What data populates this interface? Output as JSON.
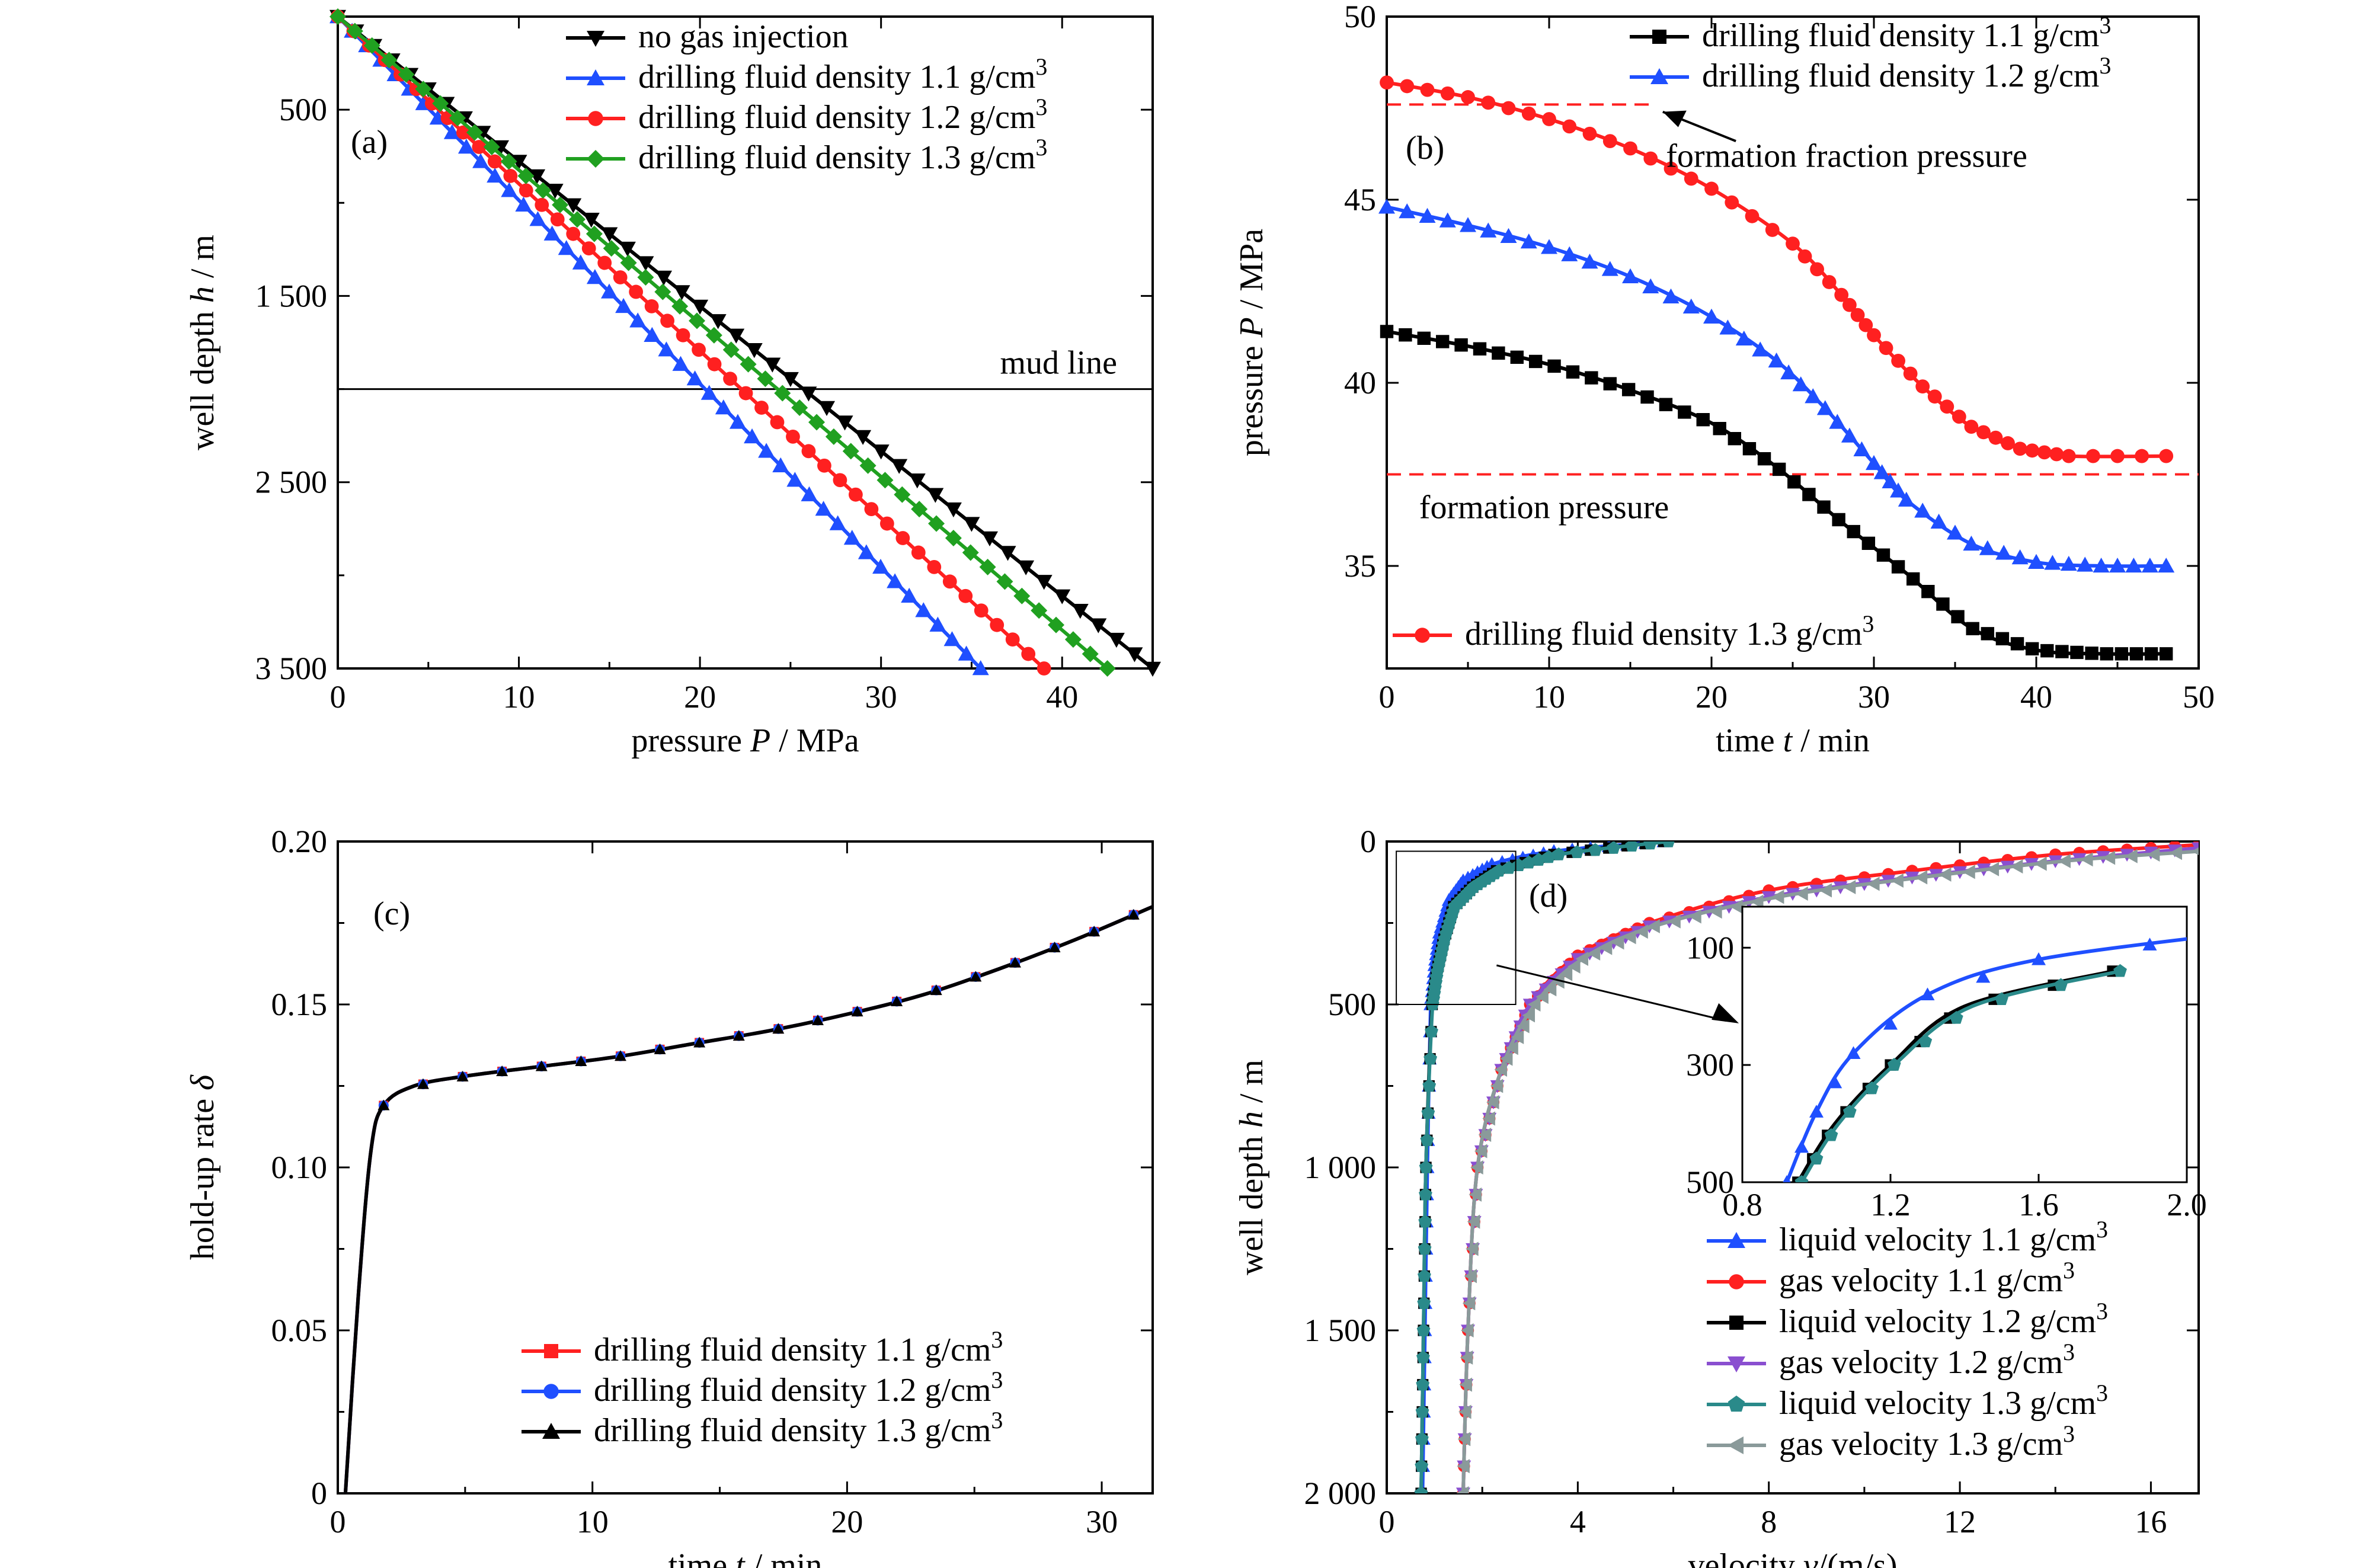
{
  "chart_data": [
    {
      "id": "a",
      "type": "line",
      "panel_label": "(a)",
      "xlabel_pre": "pressure ",
      "xlabel_var": "P",
      "xlabel_post": " / MPa",
      "ylabel_pre": "well depth ",
      "ylabel_var": "h",
      "ylabel_post": " / m",
      "xlim": [
        0,
        45
      ],
      "ylim": [
        0,
        3500
      ],
      "y_inverted": true,
      "xticks": [
        0,
        10,
        20,
        30,
        40
      ],
      "xtick_labels": [
        "0",
        "10",
        "20",
        "30",
        "40"
      ],
      "yticks": [
        500,
        1500,
        2500,
        3500
      ],
      "ytick_labels": [
        "500",
        "1 500",
        "2 500",
        "3 500"
      ],
      "legend_position": "top-right",
      "annotations": [
        {
          "text": "mud line",
          "hline_y": 2000
        }
      ],
      "series": [
        {
          "name": "no gas injection",
          "color": "#000000",
          "marker": "triangle-down",
          "points": [
            [
              0,
              0
            ],
            [
              45,
              3500
            ]
          ]
        },
        {
          "name": "drilling fluid density 1.1 g/cm³",
          "color": "#1f4fff",
          "marker": "triangle-up",
          "points": [
            [
              0,
              0
            ],
            [
              35.5,
              3500
            ]
          ]
        },
        {
          "name": "drilling fluid density 1.2 g/cm³",
          "color": "#ff2020",
          "marker": "circle",
          "points": [
            [
              0,
              0
            ],
            [
              39,
              3500
            ]
          ]
        },
        {
          "name": "drilling fluid density 1.3 g/cm³",
          "color": "#20a020",
          "marker": "diamond",
          "points": [
            [
              0,
              0
            ],
            [
              42.5,
              3500
            ]
          ]
        }
      ]
    },
    {
      "id": "b",
      "type": "line",
      "panel_label": "(b)",
      "xlabel_pre": "time  ",
      "xlabel_var": "t",
      "xlabel_post": " / min",
      "ylabel_pre": "pressure ",
      "ylabel_var": "P",
      "ylabel_post": " / MPa",
      "xlim": [
        0,
        50
      ],
      "ylim": [
        32.2,
        50
      ],
      "xticks": [
        0,
        10,
        20,
        30,
        40,
        50
      ],
      "xtick_labels": [
        "0",
        "10",
        "20",
        "30",
        "40",
        "50"
      ],
      "yticks": [
        35,
        40,
        45,
        50
      ],
      "ytick_labels": [
        "35",
        "40",
        "45",
        "50"
      ],
      "annotations": [
        {
          "text": "formation fraction pressure",
          "hline_y": 47.6
        },
        {
          "text": "formation pressure",
          "hline_y": 37.5
        }
      ],
      "series": [
        {
          "name": "drilling fluid density 1.1 g/cm³",
          "color": "#000000",
          "marker": "square",
          "points": [
            [
              0,
              41.4
            ],
            [
              5,
              41.0
            ],
            [
              10,
              40.5
            ],
            [
              15,
              39.8
            ],
            [
              20,
              38.9
            ],
            [
              24,
              37.7
            ],
            [
              28,
              36.2
            ],
            [
              32,
              34.8
            ],
            [
              36,
              33.3
            ],
            [
              40,
              32.7
            ],
            [
              44,
              32.6
            ],
            [
              48,
              32.6
            ]
          ]
        },
        {
          "name": "drilling fluid density 1.2 g/cm³",
          "color": "#1f4fff",
          "marker": "triangle-up",
          "points": [
            [
              0,
              44.8
            ],
            [
              5,
              44.3
            ],
            [
              10,
              43.7
            ],
            [
              15,
              42.9
            ],
            [
              20,
              41.8
            ],
            [
              24,
              40.6
            ],
            [
              27,
              39.3
            ],
            [
              30,
              37.8
            ],
            [
              32,
              36.8
            ],
            [
              36,
              35.6
            ],
            [
              40,
              35.1
            ],
            [
              44,
              35.0
            ],
            [
              48,
              35.0
            ]
          ]
        },
        {
          "name": "drilling fluid density 1.3 g/cm³",
          "color": "#ff2020",
          "marker": "circle",
          "points": [
            [
              0,
              48.2
            ],
            [
              5,
              47.8
            ],
            [
              10,
              47.2
            ],
            [
              15,
              46.4
            ],
            [
              20,
              45.3
            ],
            [
              25,
              43.8
            ],
            [
              28,
              42.4
            ],
            [
              30,
              41.3
            ],
            [
              33,
              39.9
            ],
            [
              36,
              38.8
            ],
            [
              39,
              38.2
            ],
            [
              42,
              38.0
            ],
            [
              48,
              38.0
            ]
          ]
        }
      ]
    },
    {
      "id": "c",
      "type": "line",
      "panel_label": "(c)",
      "xlabel_pre": "time  ",
      "xlabel_var": "t",
      "xlabel_post": " / min",
      "ylabel_pre": "hold-up rate ",
      "ylabel_var": "δ",
      "ylabel_post": "",
      "xlim": [
        0,
        32
      ],
      "ylim": [
        0,
        0.2
      ],
      "xticks": [
        0,
        10,
        20,
        30
      ],
      "xtick_labels": [
        "0",
        "10",
        "20",
        "30"
      ],
      "yticks": [
        0,
        0.05,
        0.1,
        0.15,
        0.2
      ],
      "ytick_labels": [
        "0",
        "0.05",
        "0.10",
        "0.15",
        "0.20"
      ],
      "legend_position": "bottom-right",
      "series": [
        {
          "name": "drilling fluid density 1.1 g/cm³",
          "color": "#ff2020",
          "marker": "square",
          "points": [
            [
              0.3,
              0
            ],
            [
              0.8,
              0.06
            ],
            [
              1.3,
              0.105
            ],
            [
              1.8,
              0.119
            ],
            [
              3,
              0.125
            ],
            [
              5,
              0.128
            ],
            [
              8,
              0.131
            ],
            [
              11,
              0.134
            ],
            [
              14,
              0.138
            ],
            [
              17,
              0.142
            ],
            [
              20,
              0.147
            ],
            [
              23,
              0.153
            ],
            [
              26,
              0.161
            ],
            [
              29,
              0.17
            ],
            [
              32,
              0.18
            ]
          ]
        },
        {
          "name": "drilling fluid density 1.2 g/cm³",
          "color": "#1f4fff",
          "marker": "circle",
          "points": [
            [
              0.3,
              0
            ],
            [
              0.8,
              0.06
            ],
            [
              1.3,
              0.105
            ],
            [
              1.8,
              0.119
            ],
            [
              3,
              0.125
            ],
            [
              5,
              0.128
            ],
            [
              8,
              0.131
            ],
            [
              11,
              0.134
            ],
            [
              14,
              0.138
            ],
            [
              17,
              0.142
            ],
            [
              20,
              0.147
            ],
            [
              23,
              0.153
            ],
            [
              26,
              0.161
            ],
            [
              29,
              0.17
            ],
            [
              32,
              0.18
            ]
          ]
        },
        {
          "name": "drilling fluid density 1.3 g/cm³",
          "color": "#000000",
          "marker": "triangle-up",
          "points": [
            [
              0.3,
              0
            ],
            [
              0.8,
              0.06
            ],
            [
              1.3,
              0.105
            ],
            [
              1.8,
              0.119
            ],
            [
              3,
              0.125
            ],
            [
              5,
              0.128
            ],
            [
              8,
              0.131
            ],
            [
              11,
              0.134
            ],
            [
              14,
              0.138
            ],
            [
              17,
              0.142
            ],
            [
              20,
              0.147
            ],
            [
              23,
              0.153
            ],
            [
              26,
              0.161
            ],
            [
              29,
              0.17
            ],
            [
              32,
              0.18
            ]
          ]
        }
      ]
    },
    {
      "id": "d",
      "type": "line",
      "panel_label": "(d)",
      "xlabel_pre": "velocity ",
      "xlabel_var": "v",
      "xlabel_post": "/(m/s)",
      "ylabel_pre": "well depth ",
      "ylabel_var": "h",
      "ylabel_post": " / m",
      "xlim": [
        0,
        17
      ],
      "ylim": [
        0,
        2000
      ],
      "y_inverted": true,
      "xticks": [
        0,
        4,
        8,
        12,
        16
      ],
      "xtick_labels": [
        "0",
        "4",
        "8",
        "12",
        "16"
      ],
      "yticks": [
        0,
        500,
        1000,
        1500,
        2000
      ],
      "ytick_labels": [
        "0",
        "500",
        "1 000",
        "1 500",
        "2 000"
      ],
      "legend_position": "bottom-right",
      "inset": {
        "xlim": [
          0.8,
          2.0
        ],
        "ylim": [
          30,
          500
        ],
        "y_inverted": true,
        "xticks": [
          0.8,
          1.2,
          1.6,
          2.0
        ],
        "xtick_labels": [
          "0.8",
          "1.2",
          "1.6",
          "2.0"
        ],
        "yticks": [
          100,
          300,
          500
        ],
        "ytick_labels": [
          "100",
          "300",
          "500"
        ]
      },
      "series": [
        {
          "name": "liquid velocity 1.1 g/cm³",
          "color": "#1f4fff",
          "marker": "triangle-up",
          "points": [
            [
              0.75,
              2000
            ],
            [
              0.8,
              1500
            ],
            [
              0.85,
              1000
            ],
            [
              0.92,
              500
            ],
            [
              1.0,
              380
            ],
            [
              1.1,
              280
            ],
            [
              1.3,
              180
            ],
            [
              1.6,
              120
            ],
            [
              2.2,
              70
            ],
            [
              3.5,
              30
            ],
            [
              5.8,
              0
            ]
          ]
        },
        {
          "name": "gas velocity 1.1 g/cm³",
          "color": "#ff2020",
          "marker": "circle",
          "points": [
            [
              1.6,
              2000
            ],
            [
              1.7,
              1500
            ],
            [
              1.9,
              1000
            ],
            [
              2.4,
              700
            ],
            [
              3.0,
              500
            ],
            [
              4.0,
              350
            ],
            [
              5.5,
              250
            ],
            [
              8.0,
              150
            ],
            [
              11,
              90
            ],
            [
              14,
              40
            ],
            [
              17,
              10
            ]
          ]
        },
        {
          "name": "liquid velocity 1.2 g/cm³",
          "color": "#000000",
          "marker": "square",
          "points": [
            [
              0.72,
              2000
            ],
            [
              0.77,
              1500
            ],
            [
              0.82,
              1000
            ],
            [
              0.95,
              500
            ],
            [
              1.05,
              400
            ],
            [
              1.2,
              300
            ],
            [
              1.4,
              200
            ],
            [
              1.8,
              140
            ],
            [
              2.3,
              90
            ],
            [
              3.5,
              40
            ],
            [
              5.8,
              0
            ]
          ]
        },
        {
          "name": "gas velocity 1.2 g/cm³",
          "color": "#8a4fd0",
          "marker": "triangle-down",
          "points": [
            [
              1.6,
              2000
            ],
            [
              1.7,
              1500
            ],
            [
              1.9,
              1000
            ],
            [
              2.4,
              700
            ],
            [
              3.0,
              500
            ],
            [
              4.0,
              360
            ],
            [
              5.5,
              260
            ],
            [
              8.0,
              170
            ],
            [
              11,
              110
            ],
            [
              14,
              60
            ],
            [
              17,
              20
            ]
          ]
        },
        {
          "name": "liquid velocity 1.3 g/cm³",
          "color": "#2a8a8a",
          "marker": "pentagon",
          "points": [
            [
              0.72,
              2000
            ],
            [
              0.77,
              1500
            ],
            [
              0.82,
              1000
            ],
            [
              0.96,
              500
            ],
            [
              1.06,
              400
            ],
            [
              1.21,
              300
            ],
            [
              1.42,
              200
            ],
            [
              1.82,
              140
            ],
            [
              2.35,
              90
            ],
            [
              3.6,
              40
            ],
            [
              5.9,
              0
            ]
          ]
        },
        {
          "name": "gas velocity 1.3 g/cm³",
          "color": "#8a9a9a",
          "marker": "triangle-left",
          "points": [
            [
              1.6,
              2000
            ],
            [
              1.7,
              1500
            ],
            [
              1.9,
              1000
            ],
            [
              2.4,
              700
            ],
            [
              3.1,
              500
            ],
            [
              4.1,
              360
            ],
            [
              5.6,
              260
            ],
            [
              8.2,
              170
            ],
            [
              11.2,
              110
            ],
            [
              14.2,
              60
            ],
            [
              17,
              30
            ]
          ]
        }
      ]
    }
  ]
}
